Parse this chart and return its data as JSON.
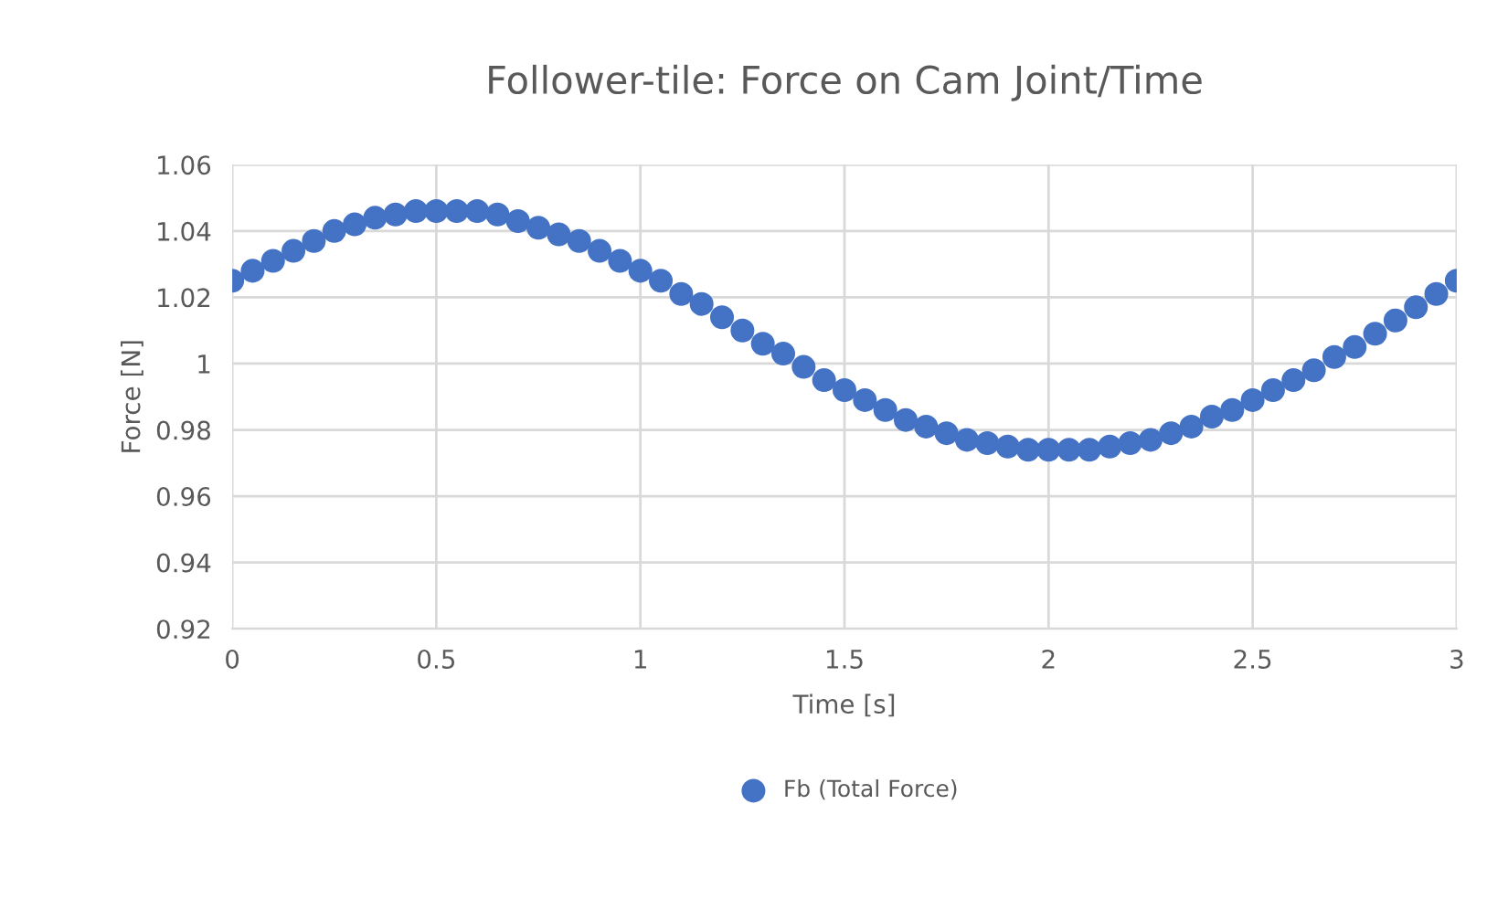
{
  "chart_data": {
    "type": "scatter",
    "title": "Follower-tile: Force on Cam Joint/Time",
    "xlabel": "Time [s]",
    "ylabel": "Force [N]",
    "x": [
      0,
      0.05,
      0.1,
      0.15,
      0.2,
      0.25,
      0.3,
      0.35,
      0.4,
      0.45,
      0.5,
      0.55,
      0.6,
      0.65,
      0.7,
      0.75,
      0.8,
      0.85,
      0.9,
      0.95,
      1.0,
      1.05,
      1.1,
      1.15,
      1.2,
      1.25,
      1.3,
      1.35,
      1.4,
      1.45,
      1.5,
      1.55,
      1.6,
      1.65,
      1.7,
      1.75,
      1.8,
      1.85,
      1.9,
      1.95,
      2.0,
      2.05,
      2.1,
      2.15,
      2.2,
      2.25,
      2.3,
      2.35,
      2.4,
      2.45,
      2.5,
      2.55,
      2.6,
      2.65,
      2.7,
      2.75,
      2.8,
      2.85,
      2.9,
      2.95,
      3.0
    ],
    "series": [
      {
        "name": "Fb (Total Force)",
        "color": "#4472c4",
        "values": [
          1.025,
          1.028,
          1.031,
          1.034,
          1.037,
          1.04,
          1.042,
          1.044,
          1.045,
          1.046,
          1.046,
          1.046,
          1.046,
          1.045,
          1.043,
          1.041,
          1.039,
          1.037,
          1.034,
          1.031,
          1.028,
          1.025,
          1.021,
          1.018,
          1.014,
          1.01,
          1.006,
          1.003,
          0.999,
          0.995,
          0.992,
          0.989,
          0.986,
          0.983,
          0.981,
          0.979,
          0.977,
          0.976,
          0.975,
          0.974,
          0.974,
          0.974,
          0.974,
          0.975,
          0.976,
          0.977,
          0.979,
          0.981,
          0.984,
          0.986,
          0.989,
          0.992,
          0.995,
          0.998,
          1.002,
          1.005,
          1.009,
          1.013,
          1.017,
          1.021,
          1.025
        ]
      }
    ],
    "xlim": [
      0,
      3
    ],
    "xticks": [
      0,
      0.5,
      1,
      1.5,
      2,
      2.5,
      3
    ],
    "ylim": [
      0.92,
      1.06
    ],
    "yticks": [
      0.92,
      0.94,
      0.96,
      0.98,
      1,
      1.02,
      1.04,
      1.06
    ],
    "grid": true,
    "legend": "bottom",
    "marker": "circle"
  }
}
